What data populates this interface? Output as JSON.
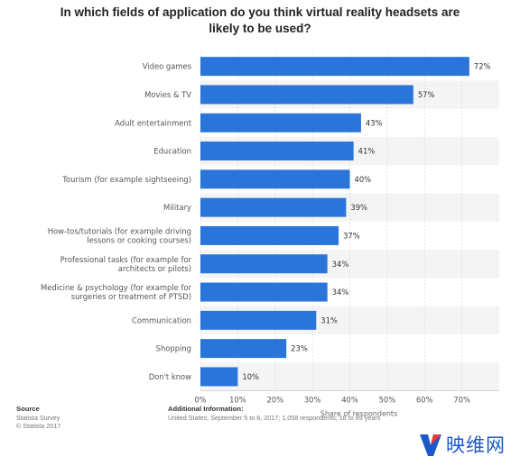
{
  "title": {
    "line1": "In which fields of application do you think virtual reality headsets are",
    "line2": "likely to be used?"
  },
  "chart_data": {
    "type": "bar",
    "orientation": "horizontal",
    "categories": [
      [
        "Video games"
      ],
      [
        "Movies & TV"
      ],
      [
        "Adult entertainment"
      ],
      [
        "Education"
      ],
      [
        "Tourism (for example sightseeing)"
      ],
      [
        "Military"
      ],
      [
        "How-tos/tutorials (for example driving",
        "lessons or cooking courses)"
      ],
      [
        "Professional tasks (for example for",
        "architects or pilots)"
      ],
      [
        "Medicine & psychology (for example for",
        "surgeries or treatment of PTSD)"
      ],
      [
        "Communication"
      ],
      [
        "Shopping"
      ],
      [
        "Don't know"
      ]
    ],
    "values": [
      72,
      57,
      43,
      41,
      40,
      39,
      37,
      34,
      34,
      31,
      23,
      10
    ],
    "value_labels": [
      "72%",
      "57%",
      "43%",
      "41%",
      "40%",
      "39%",
      "37%",
      "34%",
      "34%",
      "31%",
      "23%",
      "10%"
    ],
    "xticks": [
      0,
      10,
      20,
      30,
      40,
      50,
      60,
      70
    ],
    "xtick_labels": [
      "0%",
      "10%",
      "20%",
      "30%",
      "40%",
      "50%",
      "60%",
      "70%"
    ],
    "xlim": [
      0,
      80
    ],
    "xlabel": "Share of respondents",
    "ylabel": "",
    "grid": true,
    "bar_color": "#2a75d9",
    "stripe_color": "#f4f4f4"
  },
  "footer": {
    "source_title": "Source",
    "source_lines": [
      "Statista Survey",
      "© Statista 2017"
    ],
    "info_title": "Additional Information:",
    "info_text": "United States; September 5 to 6, 2017; 1,058 respondents; 18 to 69 years"
  },
  "logo": {
    "text": "映维网",
    "color": "#1c58c9"
  }
}
